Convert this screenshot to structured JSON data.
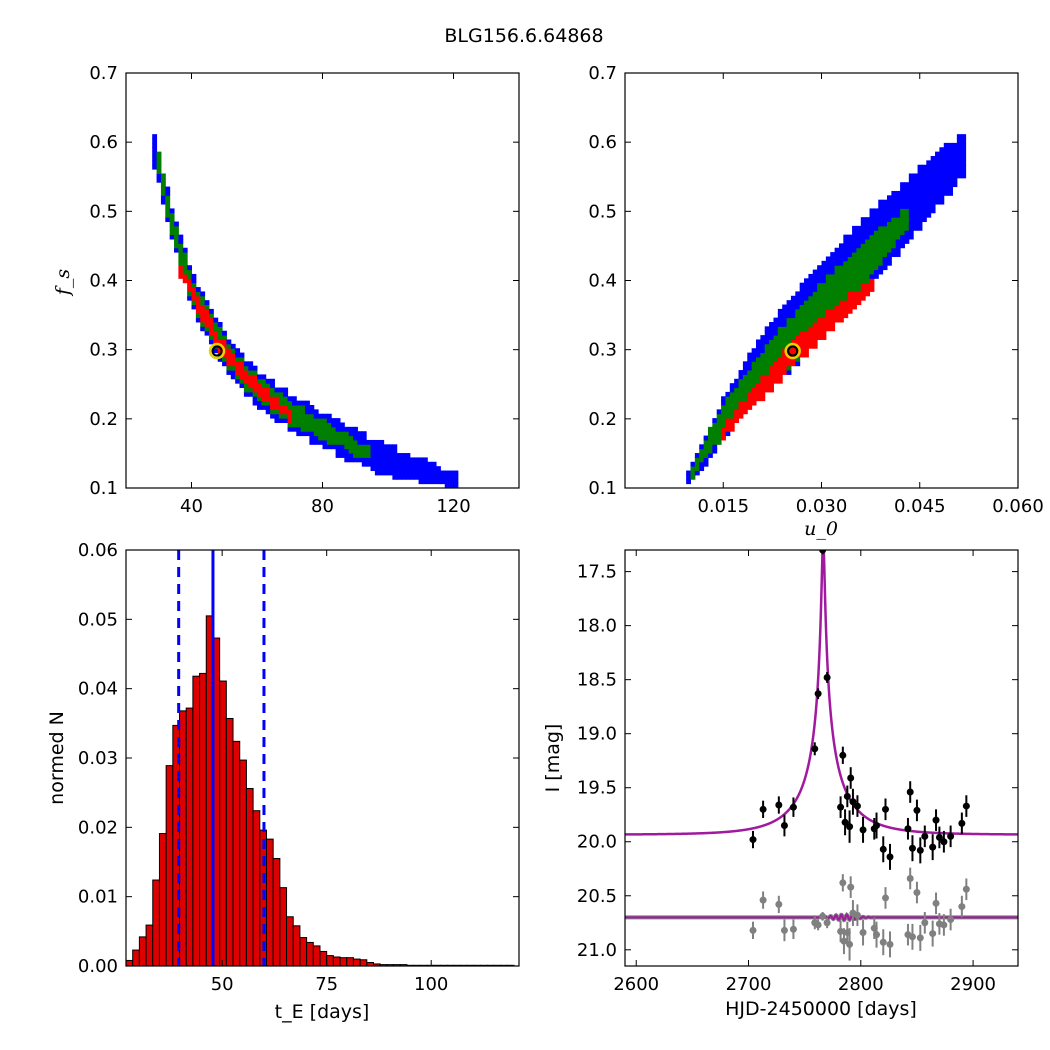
{
  "figure": {
    "title": "BLG156.6.64868"
  },
  "colors": {
    "blue": "#0000ff",
    "green": "#007f00",
    "red": "#ff0000",
    "black": "#000000",
    "gray": "#808080",
    "magenta": "#a0199f",
    "highlight": "#e6d200",
    "hist_fill": "#dd0000"
  },
  "chart_data": [
    {
      "id": "fs_vs_tE",
      "type": "heatmap",
      "title": "",
      "xlabel": "",
      "ylabel": "f_s",
      "xlim": [
        20,
        140
      ],
      "ylim": [
        0.1,
        0.7
      ],
      "xticks": [
        40,
        80,
        120
      ],
      "yticks": [
        0.1,
        0.2,
        0.3,
        0.4,
        0.5,
        0.6,
        0.7
      ],
      "xtick_labels": [
        "40",
        "80",
        "120"
      ],
      "ytick_labels": [
        "0.1",
        "0.2",
        "0.3",
        "0.4",
        "0.5",
        "0.6",
        "0.7"
      ],
      "contour_levels": [
        {
          "level": "outer",
          "color": "blue",
          "ridge": [
            [
              28,
              0.6
            ],
            [
              32,
              0.52
            ],
            [
              36,
              0.45
            ],
            [
              40,
              0.39
            ],
            [
              45,
              0.34
            ],
            [
              50,
              0.3
            ],
            [
              55,
              0.27
            ],
            [
              60,
              0.245
            ],
            [
              70,
              0.21
            ],
            [
              80,
              0.185
            ],
            [
              90,
              0.16
            ],
            [
              100,
              0.14
            ],
            [
              110,
              0.125
            ],
            [
              121,
              0.11
            ]
          ],
          "half_width": [
            0.022,
            0.022,
            0.024,
            0.026,
            0.026,
            0.026,
            0.026,
            0.026,
            0.026,
            0.026,
            0.024,
            0.022,
            0.018,
            0.012
          ]
        },
        {
          "level": "middle",
          "color": "green",
          "ridge": [
            [
              30,
              0.57
            ],
            [
              32,
              0.52
            ],
            [
              36,
              0.45
            ],
            [
              40,
              0.39
            ],
            [
              45,
              0.34
            ],
            [
              50,
              0.3
            ],
            [
              55,
              0.27
            ],
            [
              60,
              0.245
            ],
            [
              70,
              0.21
            ],
            [
              80,
              0.185
            ],
            [
              90,
              0.16
            ],
            [
              95,
              0.15
            ]
          ],
          "half_width": [
            0.012,
            0.015,
            0.017,
            0.018,
            0.018,
            0.018,
            0.018,
            0.017,
            0.016,
            0.014,
            0.011,
            0.008
          ]
        },
        {
          "level": "inner",
          "color": "red",
          "ridge": [
            [
              36,
              0.42
            ],
            [
              40,
              0.385
            ],
            [
              45,
              0.34
            ],
            [
              50,
              0.3
            ],
            [
              55,
              0.27
            ],
            [
              60,
              0.245
            ],
            [
              65,
              0.225
            ],
            [
              70,
              0.205
            ]
          ],
          "half_width": [
            0.008,
            0.01,
            0.01,
            0.01,
            0.01,
            0.01,
            0.009,
            0.007
          ]
        }
      ],
      "best_fit": {
        "x": 47.8,
        "y": 0.298
      }
    },
    {
      "id": "fs_vs_u0",
      "type": "heatmap",
      "title": "",
      "xlabel": "u_0",
      "ylabel": "",
      "xlim": [
        0.0,
        0.06
      ],
      "ylim": [
        0.1,
        0.7
      ],
      "xticks": [
        0.015,
        0.03,
        0.045,
        0.06
      ],
      "yticks": [
        0.1,
        0.2,
        0.3,
        0.4,
        0.5,
        0.6,
        0.7
      ],
      "xtick_labels": [
        "0.015",
        "0.030",
        "0.045",
        "0.060"
      ],
      "ytick_labels": [
        "0.1",
        "0.2",
        "0.3",
        "0.4",
        "0.5",
        "0.6",
        "0.7"
      ],
      "contour_levels": [
        {
          "level": "outer",
          "color": "blue",
          "ridge": [
            [
              0.0095,
              0.115
            ],
            [
              0.012,
              0.15
            ],
            [
              0.015,
              0.2
            ],
            [
              0.018,
              0.24
            ],
            [
              0.021,
              0.28
            ],
            [
              0.024,
              0.31
            ],
            [
              0.028,
              0.35
            ],
            [
              0.032,
              0.39
            ],
            [
              0.036,
              0.43
            ],
            [
              0.04,
              0.47
            ],
            [
              0.044,
              0.51
            ],
            [
              0.048,
              0.55
            ],
            [
              0.052,
              0.585
            ]
          ],
          "half_width": [
            0.012,
            0.022,
            0.03,
            0.035,
            0.045,
            0.05,
            0.055,
            0.055,
            0.055,
            0.05,
            0.045,
            0.04,
            0.03
          ]
        },
        {
          "level": "middle",
          "color": "green",
          "ridge": [
            [
              0.01,
              0.12
            ],
            [
              0.013,
              0.17
            ],
            [
              0.016,
              0.21
            ],
            [
              0.02,
              0.255
            ],
            [
              0.024,
              0.3
            ],
            [
              0.028,
              0.34
            ],
            [
              0.032,
              0.38
            ],
            [
              0.036,
              0.42
            ],
            [
              0.04,
              0.46
            ],
            [
              0.043,
              0.49
            ]
          ],
          "half_width": [
            0.01,
            0.018,
            0.024,
            0.03,
            0.035,
            0.035,
            0.033,
            0.03,
            0.024,
            0.016
          ]
        },
        {
          "level": "inner",
          "color": "red",
          "ridge": [
            [
              0.015,
              0.18
            ],
            [
              0.018,
              0.215
            ],
            [
              0.022,
              0.255
            ],
            [
              0.026,
              0.3
            ],
            [
              0.03,
              0.33
            ],
            [
              0.034,
              0.365
            ],
            [
              0.038,
              0.395
            ]
          ],
          "half_width": [
            0.008,
            0.012,
            0.016,
            0.018,
            0.016,
            0.014,
            0.008
          ]
        }
      ],
      "best_fit": {
        "x": 0.0256,
        "y": 0.298
      }
    },
    {
      "id": "tE_histogram",
      "type": "bar",
      "title": "",
      "xlabel": "t_E [days]",
      "ylabel": "normed N",
      "xlim": [
        27,
        121
      ],
      "ylim": [
        0,
        0.06
      ],
      "xticks": [
        50,
        75,
        100
      ],
      "yticks": [
        0,
        0.01,
        0.02,
        0.03,
        0.04,
        0.05,
        0.06
      ],
      "xtick_labels": [
        "50",
        "75",
        "100"
      ],
      "ytick_labels": [
        "0.00",
        "0.01",
        "0.02",
        "0.03",
        "0.04",
        "0.05",
        "0.06"
      ],
      "bin_start": 27,
      "bin_width": 1.6,
      "values": [
        0.0008,
        0.0023,
        0.0042,
        0.0059,
        0.0124,
        0.0191,
        0.0289,
        0.0347,
        0.0368,
        0.0372,
        0.0418,
        0.0422,
        0.0505,
        0.0473,
        0.0411,
        0.0357,
        0.0324,
        0.0297,
        0.0256,
        0.0224,
        0.0196,
        0.0183,
        0.0155,
        0.0113,
        0.0071,
        0.0058,
        0.0041,
        0.0034,
        0.0029,
        0.0021,
        0.0015,
        0.0013,
        0.0012,
        0.0012,
        0.001,
        0.0009,
        0.0005,
        0.0003,
        0.0002,
        0.0002,
        0.0002,
        0.0002,
        0.0001,
        0.0001,
        0.0001,
        0.0001,
        0.0001,
        0.0001,
        0.0001,
        0.0001,
        0.0001,
        0.0001,
        0.0001,
        0.0001,
        0.0001,
        0.0001,
        0.0001,
        0.0001
      ],
      "vlines": [
        {
          "x": 47.8,
          "style": "solid"
        },
        {
          "x": 39.6,
          "style": "dashed"
        },
        {
          "x": 60.0,
          "style": "dashed"
        }
      ]
    },
    {
      "id": "light_curve",
      "type": "scatter",
      "title": "",
      "xlabel": "HJD-2450000 [days]",
      "ylabel": "I [mag]",
      "xlim": [
        2590,
        2940
      ],
      "ylim": [
        21.15,
        17.3
      ],
      "xticks": [
        2600,
        2700,
        2800,
        2900
      ],
      "yticks": [
        17.5,
        18.0,
        18.5,
        19.0,
        19.5,
        20.0,
        20.5,
        21.0
      ],
      "xtick_labels": [
        "2600",
        "2700",
        "2800",
        "2900"
      ],
      "ytick_labels": [
        "17.5",
        "18.0",
        "18.5",
        "19.0",
        "19.5",
        "20.0",
        "20.5",
        "21.0"
      ],
      "model": {
        "t0": 2766.5,
        "tE": 47.8,
        "u0": 0.0256,
        "fs": 0.298,
        "baseline": 19.935
      },
      "residual_offset": 20.7,
      "series": [
        {
          "name": "",
          "role": "data",
          "color": "black",
          "points": [
            [
              2704,
              19.98,
              0.08
            ],
            [
              2713,
              19.7,
              0.08
            ],
            [
              2727,
              19.66,
              0.08
            ],
            [
              2732,
              19.85,
              0.1
            ],
            [
              2740,
              19.68,
              0.09
            ],
            [
              2759,
              19.14,
              0.06
            ],
            [
              2762,
              18.63,
              0.05
            ],
            [
              2766,
              17.3,
              0.04
            ],
            [
              2770,
              18.48,
              0.05
            ],
            [
              2782,
              19.68,
              0.1
            ],
            [
              2784,
              19.2,
              0.08
            ],
            [
              2786,
              19.82,
              0.12
            ],
            [
              2788,
              19.58,
              0.1
            ],
            [
              2790,
              19.86,
              0.15
            ],
            [
              2791,
              19.41,
              0.1
            ],
            [
              2793,
              19.63,
              0.12
            ],
            [
              2797,
              19.67,
              0.1
            ],
            [
              2802,
              19.89,
              0.12
            ],
            [
              2812,
              19.88,
              0.1
            ],
            [
              2814,
              19.85,
              0.12
            ],
            [
              2820,
              20.07,
              0.12
            ],
            [
              2822,
              19.7,
              0.1
            ],
            [
              2826,
              20.14,
              0.12
            ],
            [
              2842,
              19.88,
              0.1
            ],
            [
              2844,
              19.54,
              0.1
            ],
            [
              2846,
              20.06,
              0.12
            ],
            [
              2850,
              19.71,
              0.1
            ],
            [
              2853,
              20.08,
              0.12
            ],
            [
              2857,
              19.95,
              0.1
            ],
            [
              2864,
              20.05,
              0.12
            ],
            [
              2867,
              19.8,
              0.1
            ],
            [
              2870,
              19.96,
              0.1
            ],
            [
              2874,
              20.0,
              0.1
            ],
            [
              2880,
              19.95,
              0.1
            ],
            [
              2890,
              19.83,
              0.1
            ],
            [
              2894,
              19.67,
              0.1
            ]
          ]
        },
        {
          "name": "",
          "role": "residuals",
          "color": "gray",
          "points": [
            [
              2704,
              20.82,
              0.08
            ],
            [
              2713,
              20.54,
              0.08
            ],
            [
              2727,
              20.58,
              0.08
            ],
            [
              2732,
              20.82,
              0.1
            ],
            [
              2740,
              20.81,
              0.09
            ],
            [
              2759,
              20.75,
              0.06
            ],
            [
              2762,
              20.77,
              0.05
            ],
            [
              2766,
              20.69,
              0.04
            ],
            [
              2770,
              20.75,
              0.05
            ],
            [
              2782,
              20.83,
              0.1
            ],
            [
              2784,
              20.38,
              0.08
            ],
            [
              2785,
              20.92,
              0.12
            ],
            [
              2788,
              20.84,
              0.1
            ],
            [
              2790,
              20.95,
              0.15
            ],
            [
              2791,
              20.42,
              0.1
            ],
            [
              2793,
              20.66,
              0.12
            ],
            [
              2797,
              20.68,
              0.1
            ],
            [
              2802,
              20.84,
              0.12
            ],
            [
              2812,
              20.8,
              0.1
            ],
            [
              2814,
              20.86,
              0.12
            ],
            [
              2820,
              20.93,
              0.12
            ],
            [
              2822,
              20.52,
              0.1
            ],
            [
              2826,
              20.95,
              0.12
            ],
            [
              2842,
              20.86,
              0.1
            ],
            [
              2844,
              20.34,
              0.1
            ],
            [
              2846,
              20.88,
              0.12
            ],
            [
              2850,
              20.47,
              0.1
            ],
            [
              2853,
              20.89,
              0.12
            ],
            [
              2857,
              20.75,
              0.1
            ],
            [
              2864,
              20.85,
              0.12
            ],
            [
              2867,
              20.57,
              0.1
            ],
            [
              2870,
              20.76,
              0.1
            ],
            [
              2874,
              20.77,
              0.1
            ],
            [
              2880,
              20.72,
              0.1
            ],
            [
              2890,
              20.6,
              0.1
            ],
            [
              2894,
              20.44,
              0.1
            ]
          ]
        }
      ]
    }
  ]
}
